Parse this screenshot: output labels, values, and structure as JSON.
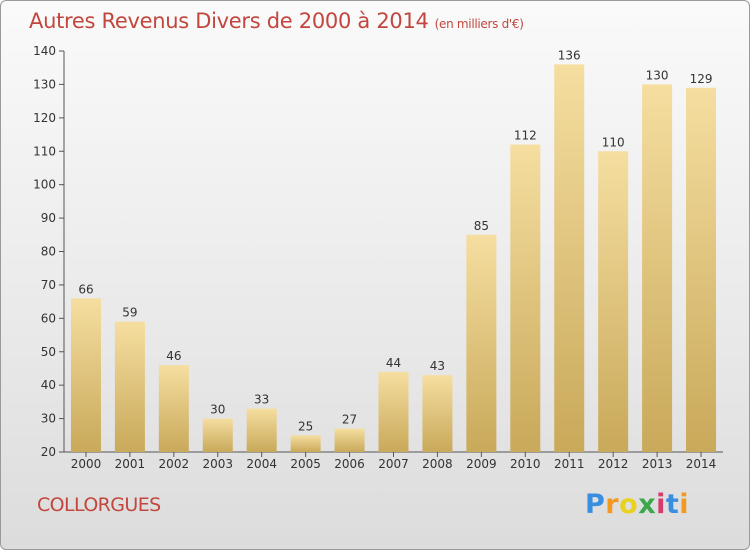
{
  "header": {
    "title": "Autres Revenus Divers de 2000 à 2014",
    "unit": "(en milliers d'€)"
  },
  "footer": {
    "commune": "COLLORGUES",
    "logo_letters": [
      "P",
      "r",
      "o",
      "x",
      "i",
      "t",
      "i"
    ]
  },
  "colors": {
    "title": "#c1473e",
    "bar_light": "#f5dea0",
    "bar_dark": "#c9a95a",
    "axis": "#555555"
  },
  "chart_data": {
    "type": "bar",
    "title": "Autres Revenus Divers de 2000 à 2014",
    "subtitle": "(en milliers d'€)",
    "categories": [
      "2000",
      "2001",
      "2002",
      "2003",
      "2004",
      "2005",
      "2006",
      "2007",
      "2008",
      "2009",
      "2010",
      "2011",
      "2012",
      "2013",
      "2014"
    ],
    "values": [
      66,
      59,
      46,
      30,
      33,
      25,
      27,
      44,
      43,
      85,
      112,
      136,
      110,
      130,
      129
    ],
    "ylim": [
      20,
      140
    ],
    "yticks": [
      20,
      30,
      40,
      50,
      60,
      70,
      80,
      90,
      100,
      110,
      120,
      130,
      140
    ],
    "grid": false,
    "xlabel": "",
    "ylabel": ""
  }
}
